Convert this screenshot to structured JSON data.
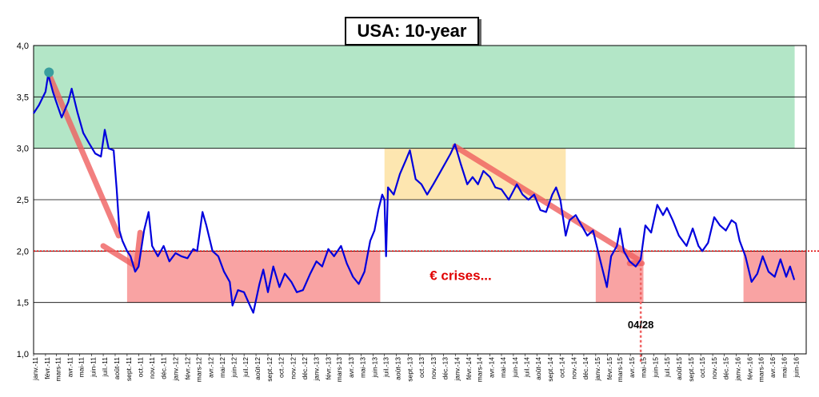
{
  "chart_data": {
    "type": "line",
    "title": "USA: 10-year",
    "ylim": [
      1.0,
      4.0
    ],
    "yticks": [
      "1,0",
      "1,5",
      "2,0",
      "2,5",
      "3,0",
      "3,5",
      "4,0"
    ],
    "grid": true,
    "x_start": "2011-01",
    "x_end": "2016-06",
    "month_labels": [
      "janv.-11",
      "févr.-11",
      "mars-11",
      "avr.-11",
      "mai-11",
      "juin-11",
      "juil.-11",
      "août-11",
      "sept.-11",
      "oct.-11",
      "nov.-11",
      "déc.-11",
      "janv.-12",
      "févr.-12",
      "mars-12",
      "avr.-12",
      "mai-12",
      "juin-12",
      "juil.-12",
      "août-12",
      "sept.-12",
      "oct.-12",
      "nov.-12",
      "déc.-12",
      "janv.-13",
      "févr.-13",
      "mars-13",
      "avr.-13",
      "mai-13",
      "juin-13",
      "juil.-13",
      "août-13",
      "sept.-13",
      "oct.-13",
      "nov.-13",
      "déc.-13",
      "janv.-14",
      "févr.-14",
      "mars-14",
      "avr.-14",
      "mai-14",
      "juin-14",
      "juil.-14",
      "août-14",
      "sept.-14",
      "oct.-14",
      "nov.-14",
      "déc.-14",
      "janv.-15",
      "févr.-15",
      "mars-15",
      "avr.-15",
      "mai-15",
      "juin-15",
      "juil.-15",
      "août-15",
      "sept.-15",
      "oct.-15",
      "nov.-15",
      "déc.-15",
      "janv.-16",
      "févr.-16",
      "mars-16",
      "avr.-16",
      "mai-16",
      "juin-16"
    ],
    "series": [
      {
        "color": "#0000dd",
        "points": [
          [
            "2011-01-01",
            3.34
          ],
          [
            "2011-01-15",
            3.42
          ],
          [
            "2011-02-01",
            3.55
          ],
          [
            "2011-02-08",
            3.72
          ],
          [
            "2011-02-20",
            3.55
          ],
          [
            "2011-03-01",
            3.45
          ],
          [
            "2011-03-15",
            3.3
          ],
          [
            "2011-04-01",
            3.45
          ],
          [
            "2011-04-10",
            3.58
          ],
          [
            "2011-04-25",
            3.35
          ],
          [
            "2011-05-10",
            3.15
          ],
          [
            "2011-05-25",
            3.05
          ],
          [
            "2011-06-10",
            2.95
          ],
          [
            "2011-06-25",
            2.92
          ],
          [
            "2011-07-05",
            3.18
          ],
          [
            "2011-07-15",
            3.0
          ],
          [
            "2011-07-28",
            2.98
          ],
          [
            "2011-08-05",
            2.6
          ],
          [
            "2011-08-12",
            2.2
          ],
          [
            "2011-08-20",
            2.1
          ],
          [
            "2011-09-01",
            2.0
          ],
          [
            "2011-09-10",
            1.95
          ],
          [
            "2011-09-22",
            1.8
          ],
          [
            "2011-10-01",
            1.85
          ],
          [
            "2011-10-15",
            2.2
          ],
          [
            "2011-10-27",
            2.38
          ],
          [
            "2011-11-05",
            2.05
          ],
          [
            "2011-11-20",
            1.95
          ],
          [
            "2011-12-05",
            2.05
          ],
          [
            "2011-12-20",
            1.9
          ],
          [
            "2012-01-05",
            1.98
          ],
          [
            "2012-01-20",
            1.95
          ],
          [
            "2012-02-05",
            1.93
          ],
          [
            "2012-02-20",
            2.02
          ],
          [
            "2012-03-01",
            2.0
          ],
          [
            "2012-03-15",
            2.38
          ],
          [
            "2012-03-25",
            2.25
          ],
          [
            "2012-04-10",
            2.0
          ],
          [
            "2012-04-25",
            1.95
          ],
          [
            "2012-05-10",
            1.8
          ],
          [
            "2012-05-25",
            1.7
          ],
          [
            "2012-06-01",
            1.47
          ],
          [
            "2012-06-15",
            1.62
          ],
          [
            "2012-07-01",
            1.6
          ],
          [
            "2012-07-15",
            1.48
          ],
          [
            "2012-07-25",
            1.4
          ],
          [
            "2012-08-10",
            1.68
          ],
          [
            "2012-08-20",
            1.82
          ],
          [
            "2012-09-01",
            1.6
          ],
          [
            "2012-09-15",
            1.85
          ],
          [
            "2012-10-01",
            1.65
          ],
          [
            "2012-10-15",
            1.78
          ],
          [
            "2012-11-01",
            1.7
          ],
          [
            "2012-11-15",
            1.6
          ],
          [
            "2012-12-01",
            1.62
          ],
          [
            "2012-12-20",
            1.78
          ],
          [
            "2013-01-05",
            1.9
          ],
          [
            "2013-01-20",
            1.85
          ],
          [
            "2013-02-05",
            2.02
          ],
          [
            "2013-02-20",
            1.95
          ],
          [
            "2013-03-10",
            2.05
          ],
          [
            "2013-03-25",
            1.88
          ],
          [
            "2013-04-10",
            1.75
          ],
          [
            "2013-04-25",
            1.68
          ],
          [
            "2013-05-10",
            1.8
          ],
          [
            "2013-05-25",
            2.1
          ],
          [
            "2013-06-05",
            2.2
          ],
          [
            "2013-06-15",
            2.4
          ],
          [
            "2013-06-25",
            2.55
          ],
          [
            "2013-07-01",
            2.5
          ],
          [
            "2013-07-05",
            1.95
          ],
          [
            "2013-07-10",
            2.62
          ],
          [
            "2013-07-25",
            2.55
          ],
          [
            "2013-08-10",
            2.75
          ],
          [
            "2013-08-25",
            2.88
          ],
          [
            "2013-09-05",
            2.98
          ],
          [
            "2013-09-20",
            2.7
          ],
          [
            "2013-10-05",
            2.65
          ],
          [
            "2013-10-20",
            2.55
          ],
          [
            "2013-11-05",
            2.65
          ],
          [
            "2013-11-20",
            2.75
          ],
          [
            "2013-12-05",
            2.85
          ],
          [
            "2013-12-20",
            2.95
          ],
          [
            "2013-12-31",
            3.04
          ],
          [
            "2014-01-15",
            2.85
          ],
          [
            "2014-02-01",
            2.65
          ],
          [
            "2014-02-15",
            2.72
          ],
          [
            "2014-03-01",
            2.65
          ],
          [
            "2014-03-15",
            2.78
          ],
          [
            "2014-04-01",
            2.72
          ],
          [
            "2014-04-15",
            2.62
          ],
          [
            "2014-05-01",
            2.6
          ],
          [
            "2014-05-20",
            2.5
          ],
          [
            "2014-06-10",
            2.65
          ],
          [
            "2014-06-25",
            2.55
          ],
          [
            "2014-07-10",
            2.5
          ],
          [
            "2014-07-25",
            2.55
          ],
          [
            "2014-08-10",
            2.4
          ],
          [
            "2014-08-25",
            2.38
          ],
          [
            "2014-09-10",
            2.55
          ],
          [
            "2014-09-20",
            2.62
          ],
          [
            "2014-10-01",
            2.5
          ],
          [
            "2014-10-15",
            2.15
          ],
          [
            "2014-10-25",
            2.3
          ],
          [
            "2014-11-10",
            2.35
          ],
          [
            "2014-11-25",
            2.25
          ],
          [
            "2014-12-10",
            2.15
          ],
          [
            "2014-12-25",
            2.2
          ],
          [
            "2015-01-10",
            1.95
          ],
          [
            "2015-01-30",
            1.65
          ],
          [
            "2015-02-10",
            1.95
          ],
          [
            "2015-02-25",
            2.05
          ],
          [
            "2015-03-05",
            2.22
          ],
          [
            "2015-03-15",
            2.0
          ],
          [
            "2015-03-30",
            1.9
          ],
          [
            "2015-04-15",
            1.85
          ],
          [
            "2015-04-28",
            1.92
          ],
          [
            "2015-05-10",
            2.25
          ],
          [
            "2015-05-25",
            2.18
          ],
          [
            "2015-06-10",
            2.45
          ],
          [
            "2015-06-25",
            2.35
          ],
          [
            "2015-07-05",
            2.42
          ],
          [
            "2015-07-20",
            2.3
          ],
          [
            "2015-08-05",
            2.15
          ],
          [
            "2015-08-25",
            2.05
          ],
          [
            "2015-09-10",
            2.22
          ],
          [
            "2015-09-25",
            2.05
          ],
          [
            "2015-10-05",
            2.0
          ],
          [
            "2015-10-20",
            2.08
          ],
          [
            "2015-11-05",
            2.33
          ],
          [
            "2015-11-20",
            2.25
          ],
          [
            "2015-12-05",
            2.2
          ],
          [
            "2015-12-20",
            2.3
          ],
          [
            "2015-12-31",
            2.27
          ],
          [
            "2016-01-10",
            2.1
          ],
          [
            "2016-01-25",
            1.95
          ],
          [
            "2016-02-10",
            1.7
          ],
          [
            "2016-02-25",
            1.78
          ],
          [
            "2016-03-10",
            1.95
          ],
          [
            "2016-03-25",
            1.8
          ],
          [
            "2016-04-10",
            1.75
          ],
          [
            "2016-04-25",
            1.92
          ],
          [
            "2016-05-10",
            1.75
          ],
          [
            "2016-05-20",
            1.85
          ],
          [
            "2016-05-31",
            1.72
          ]
        ]
      }
    ],
    "zones": [
      {
        "kind": "green",
        "x0": "2011-01",
        "x1": "2016-06",
        "y0": 3.0,
        "y1": 4.0,
        "color": "#b3e6c7"
      },
      {
        "kind": "yellow",
        "x0": "2013-07-01",
        "x1": "2014-10-15",
        "y0": 2.5,
        "y1": 3.0,
        "color": "#fde6b0"
      },
      {
        "kind": "red",
        "x0": "2011-09-01",
        "x1": "2013-06-20",
        "y0": 1.5,
        "y1": 2.0,
        "color": "#f9a3a3"
      },
      {
        "kind": "red",
        "x0": "2015-01-01",
        "x1": "2015-05-05",
        "y0": 1.5,
        "y1": 2.0,
        "color": "#f9a3a3"
      },
      {
        "kind": "red",
        "x0": "2016-01-20",
        "x1": "2016-06-30",
        "y0": 1.5,
        "y1": 2.0,
        "color": "#f9a3a3"
      }
    ],
    "reference_line": {
      "y": 2.0,
      "color": "#e00000"
    },
    "trend_lines": [
      {
        "from": [
          "2011-02-10",
          3.72
        ],
        "to": [
          "2011-08-10",
          2.15
        ],
        "color": "#f06060"
      },
      {
        "from": [
          "2011-07-01",
          2.05
        ],
        "to": [
          "2011-09-25",
          1.85
        ],
        "color": "#f06060"
      },
      {
        "from": [
          "2011-09-25",
          1.85
        ],
        "to": [
          "2011-10-05",
          2.18
        ],
        "color": "#f06060"
      },
      {
        "from": [
          "2013-12-31",
          3.02
        ],
        "to": [
          "2015-04-20",
          1.92
        ],
        "color": "#f06060"
      },
      {
        "from": [
          "2015-03-30",
          1.88
        ],
        "to": [
          "2015-05-01",
          1.88
        ],
        "color": "#f06060"
      }
    ],
    "marker": {
      "x": "2011-02-10",
      "y": 3.74,
      "color": "#3a9e9e"
    },
    "annotations": {
      "crises_text": "€ crises...",
      "crises_at": [
        "2014-01-15",
        1.72
      ],
      "date_text": "04/28",
      "date_at": [
        "2015-04-28",
        1.25
      ],
      "date_line_x": "2015-04-28"
    }
  }
}
